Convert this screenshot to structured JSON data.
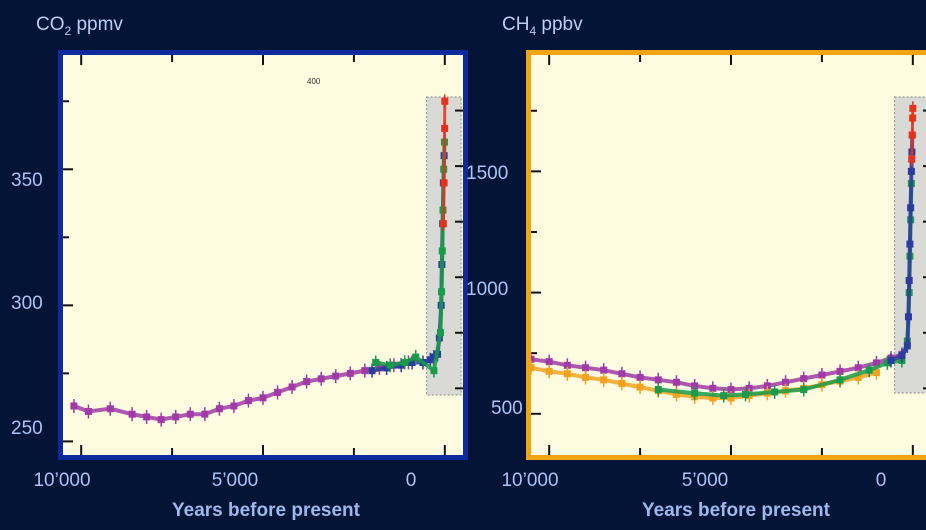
{
  "chart_data": [
    {
      "type": "scatter",
      "title": "CO₂ ppmv",
      "title_main": "CO",
      "title_sub": "2",
      "title_unit": " ppmv",
      "xlabel": "Years before present",
      "ylabel": "",
      "xlim": [
        10500,
        -500
      ],
      "ylim": [
        245,
        392
      ],
      "x_ticks": [
        "10’000",
        "5’000",
        "0"
      ],
      "x_tick_values": [
        10000,
        5000,
        0
      ],
      "y_ticks": [
        "350",
        "300",
        "250"
      ],
      "y_tick_values": [
        350,
        300,
        250
      ],
      "frame_color": "#0d2a9c",
      "highlight_box_x": [
        -450,
        500
      ],
      "stray_label": "400",
      "series": [
        {
          "color": "#a03aa6",
          "values": [
            [
              10200,
              263
            ],
            [
              9800,
              261
            ],
            [
              9200,
              262
            ],
            [
              8600,
              260
            ],
            [
              8200,
              259
            ],
            [
              7800,
              258
            ],
            [
              7400,
              259
            ],
            [
              7000,
              260
            ],
            [
              6600,
              260
            ],
            [
              6200,
              262
            ],
            [
              5800,
              263
            ],
            [
              5400,
              265
            ],
            [
              5000,
              266
            ],
            [
              4600,
              268
            ],
            [
              4200,
              270
            ],
            [
              3800,
              272
            ],
            [
              3400,
              273
            ],
            [
              3000,
              274
            ],
            [
              2600,
              275
            ],
            [
              2200,
              276
            ],
            [
              1800,
              277
            ],
            [
              1400,
              278
            ],
            [
              1000,
              279
            ]
          ]
        },
        {
          "color": "#2b3c9e",
          "values": [
            [
              2000,
              276
            ],
            [
              1600,
              277
            ],
            [
              1200,
              278
            ],
            [
              900,
              279
            ],
            [
              600,
              279
            ],
            [
              400,
              280
            ],
            [
              300,
              281
            ],
            [
              200,
              282
            ],
            [
              150,
              288
            ],
            [
              100,
              300
            ],
            [
              80,
              315
            ],
            [
              60,
              330
            ],
            [
              40,
              345
            ],
            [
              20,
              355
            ]
          ]
        },
        {
          "color": "#1a9a4a",
          "values": [
            [
              1900,
              279
            ],
            [
              1500,
              278
            ],
            [
              1100,
              279
            ],
            [
              800,
              281
            ],
            [
              300,
              276
            ],
            [
              120,
              290
            ],
            [
              90,
              305
            ],
            [
              70,
              320
            ],
            [
              50,
              335
            ],
            [
              30,
              350
            ],
            [
              10,
              360
            ]
          ]
        },
        {
          "color": "#e2331e",
          "values": [
            [
              40,
              330
            ],
            [
              20,
              345
            ],
            [
              5,
              365
            ],
            [
              0,
              375
            ]
          ]
        }
      ]
    },
    {
      "type": "scatter",
      "title": "CH₄ ppbv",
      "title_main": "CH",
      "title_sub": "4",
      "title_unit": " ppbv",
      "xlabel": "Years before present",
      "ylabel": "",
      "xlim": [
        10500,
        -500
      ],
      "ylim": [
        330,
        1980
      ],
      "x_ticks": [
        "10’000",
        "5’000",
        "0"
      ],
      "x_tick_values": [
        10000,
        5000,
        0
      ],
      "y_ticks": [
        "1500",
        "1000",
        "500"
      ],
      "y_tick_values": [
        1500,
        1000,
        500
      ],
      "frame_color": "#f2a512",
      "highlight_box_x": [
        -450,
        500
      ],
      "series": [
        {
          "color": "#a03aa6",
          "values": [
            [
              10500,
              725
            ],
            [
              10000,
              715
            ],
            [
              9500,
              700
            ],
            [
              9000,
              690
            ],
            [
              8500,
              680
            ],
            [
              8000,
              665
            ],
            [
              7500,
              650
            ],
            [
              7000,
              640
            ],
            [
              6500,
              630
            ],
            [
              6000,
              615
            ],
            [
              5500,
              605
            ],
            [
              5000,
              600
            ],
            [
              4500,
              605
            ],
            [
              4000,
              615
            ],
            [
              3500,
              630
            ],
            [
              3000,
              645
            ],
            [
              2500,
              660
            ],
            [
              2000,
              675
            ],
            [
              1500,
              690
            ],
            [
              1000,
              710
            ],
            [
              600,
              730
            ],
            [
              300,
              745
            ]
          ]
        },
        {
          "color": "#f1a320",
          "values": [
            [
              10500,
              690
            ],
            [
              10000,
              675
            ],
            [
              9500,
              665
            ],
            [
              9000,
              650
            ],
            [
              8500,
              640
            ],
            [
              8000,
              625
            ],
            [
              7500,
              610
            ],
            [
              7000,
              595
            ],
            [
              6500,
              580
            ],
            [
              6000,
              570
            ],
            [
              5500,
              565
            ],
            [
              5000,
              565
            ],
            [
              4500,
              575
            ],
            [
              4000,
              585
            ],
            [
              3500,
              595
            ],
            [
              3000,
              605
            ],
            [
              2500,
              620
            ],
            [
              2000,
              635
            ],
            [
              1500,
              650
            ],
            [
              1000,
              670
            ]
          ]
        },
        {
          "color": "#1a9a4a",
          "values": [
            [
              7000,
              600
            ],
            [
              6000,
              585
            ],
            [
              5200,
              575
            ],
            [
              4600,
              580
            ],
            [
              3800,
              590
            ],
            [
              3000,
              600
            ],
            [
              2000,
              640
            ],
            [
              1200,
              680
            ],
            [
              700,
              710
            ],
            [
              300,
              720
            ],
            [
              150,
              800
            ],
            [
              100,
              1000
            ],
            [
              80,
              1150
            ],
            [
              60,
              1300
            ],
            [
              40,
              1450
            ]
          ]
        },
        {
          "color": "#2b3c9e",
          "values": [
            [
              600,
              720
            ],
            [
              300,
              740
            ],
            [
              150,
              780
            ],
            [
              120,
              900
            ],
            [
              100,
              1050
            ],
            [
              80,
              1200
            ],
            [
              60,
              1350
            ],
            [
              40,
              1500
            ],
            [
              25,
              1580
            ],
            [
              15,
              1650
            ]
          ]
        },
        {
          "color": "#e2331e",
          "values": [
            [
              30,
              1550
            ],
            [
              15,
              1650
            ],
            [
              5,
              1720
            ],
            [
              0,
              1760
            ]
          ]
        }
      ]
    }
  ]
}
